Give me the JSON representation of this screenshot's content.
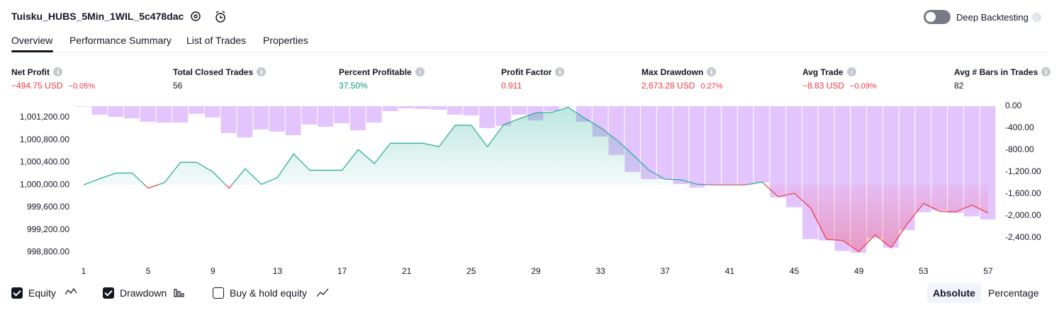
{
  "header": {
    "title": "Tuisku_HUBS_5Min_1WIL_5c478dac",
    "toggle_label": "Deep Backtesting"
  },
  "tabs": [
    "Overview",
    "Performance Summary",
    "List of Trades",
    "Properties"
  ],
  "active_tab": 0,
  "metrics": [
    {
      "label": "Net Profit",
      "value": "−494.75 USD",
      "percent": "−0.05%",
      "tone": "negative"
    },
    {
      "label": "Total Closed Trades",
      "value": "56",
      "tone": "neutral"
    },
    {
      "label": "Percent Profitable",
      "value": "37.50%",
      "tone": "positive"
    },
    {
      "label": "Profit Factor",
      "value": "0.911",
      "tone": "negative"
    },
    {
      "label": "Max Drawdown",
      "value": "2,673.28 USD",
      "percent": "0.27%",
      "tone": "negative"
    },
    {
      "label": "Avg Trade",
      "value": "−8.83 USD",
      "percent": "−0.09%",
      "tone": "negative"
    },
    {
      "label": "Avg # Bars in Trades",
      "value": "82",
      "tone": "neutral"
    }
  ],
  "chart_data": {
    "type": "line",
    "xlim": [
      1,
      57
    ],
    "xticks": [
      1,
      5,
      9,
      13,
      17,
      21,
      25,
      29,
      33,
      37,
      41,
      45,
      49,
      53,
      57
    ],
    "ylim": [
      998630,
      1001400
    ],
    "yticks": [
      {
        "value": 998800,
        "label": "998,800.00"
      },
      {
        "value": 999200,
        "label": "999,200.00"
      },
      {
        "value": 999600,
        "label": "999,600.00"
      },
      {
        "value": 1000000,
        "label": "1,000,000.00"
      },
      {
        "value": 1000400,
        "label": "1,000,400.00"
      },
      {
        "value": 1000800,
        "label": "1,000,800.00"
      },
      {
        "value": 1001200,
        "label": "1,001,200.00"
      }
    ],
    "y2lim": [
      -2840,
      0
    ],
    "y2ticks": [
      {
        "value": 0,
        "label": "0.00"
      },
      {
        "value": -400,
        "label": "-400.00"
      },
      {
        "value": -800,
        "label": "-800.00"
      },
      {
        "value": -1200,
        "label": "-1,200.00"
      },
      {
        "value": -1600,
        "label": "-1,600.00"
      },
      {
        "value": -2000,
        "label": "-2,000.00"
      },
      {
        "value": -2400,
        "label": "-2,400.00"
      }
    ],
    "series": [
      {
        "name": "Equity",
        "color": "#22ab94",
        "negative_color": "#f23645",
        "values": [
          1000000,
          1000110,
          1000210,
          1000210,
          999940,
          1000040,
          1000400,
          1000400,
          1000230,
          999940,
          1000290,
          1000010,
          1000130,
          1000550,
          1000260,
          1000260,
          1000260,
          1000630,
          1000380,
          1000740,
          1000740,
          1000740,
          1000680,
          1001060,
          1001060,
          1000680,
          1001070,
          1001180,
          1001280,
          1001290,
          1001380,
          1001190,
          1001020,
          1000800,
          1000540,
          1000260,
          1000100,
          1000090,
          1000010,
          1000000,
          1000000,
          1000000,
          1000050,
          999790,
          999850,
          999590,
          999030,
          999010,
          998810,
          999110,
          998880,
          999310,
          999670,
          999530,
          999520,
          999640,
          999500
        ]
      },
      {
        "name": "Drawdown",
        "color": "#ce93fc",
        "axis": "y2",
        "values": [
          -10,
          -155,
          -195,
          -220,
          -285,
          -300,
          -300,
          -140,
          -205,
          -490,
          -570,
          -425,
          -465,
          -530,
          -335,
          -375,
          -310,
          -440,
          -300,
          -90,
          -40,
          -50,
          -65,
          -155,
          -170,
          -400,
          -360,
          -155,
          -260,
          -90,
          -10,
          -285,
          -555,
          -890,
          -1200,
          -1330,
          -1330,
          -1420,
          -1485,
          -1430,
          -1430,
          -1430,
          -1395,
          -1665,
          -1845,
          -2425,
          -2450,
          -2640,
          -2673,
          -2400,
          -2580,
          -2260,
          -1935,
          -1895,
          -1950,
          -2010,
          -2065
        ]
      }
    ]
  },
  "legend": [
    {
      "label": "Equity",
      "checked": true
    },
    {
      "label": "Drawdown",
      "checked": true
    },
    {
      "label": "Buy & hold equity",
      "checked": false
    }
  ],
  "modes": [
    "Absolute",
    "Percentage"
  ],
  "active_mode": 0
}
